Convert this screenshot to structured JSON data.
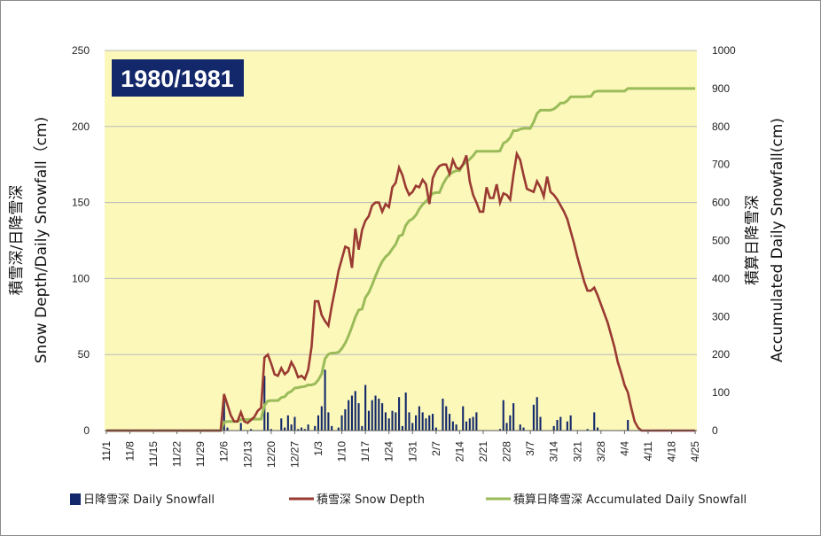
{
  "chart_data": {
    "type": "bar+line",
    "title": "1980/1981",
    "colors": {
      "plot_bg": "#fbf8ba",
      "bar": "#13286a",
      "depth": "#9a3a32",
      "accum": "#9bbb59",
      "badge": "#13286a"
    },
    "yleft": {
      "label_line1": "積雪深/日降雪深",
      "label_line2": "Snow Depth/Daily Snowfall（cm)",
      "ylim": [
        0,
        250
      ],
      "ticks": [
        "0",
        "50",
        "100",
        "150",
        "200",
        "250"
      ]
    },
    "yright": {
      "label_line1": "積算日降雪深",
      "label_line2": "Accumulated Daily Snowfall(cm)",
      "ylim": [
        0,
        1000
      ],
      "ticks": [
        "0",
        "100",
        "200",
        "300",
        "400",
        "500",
        "600",
        "700",
        "800",
        "900",
        "1000"
      ]
    },
    "xaxis": {
      "start": "11/1",
      "n_days": 176,
      "tick_labels": [
        "11/1",
        "11/8",
        "11/15",
        "11/22",
        "11/29",
        "12/6",
        "12/13",
        "12/20",
        "12/27",
        "1/3",
        "1/10",
        "1/17",
        "1/24",
        "1/31",
        "2/7",
        "2/14",
        "2/21",
        "2/28",
        "3/7",
        "3/14",
        "3/21",
        "3/28",
        "4/4",
        "4/11",
        "4/18",
        "4/25"
      ]
    },
    "legend": [
      {
        "label": "日降雪深 Daily Snowfall",
        "kind": "bar"
      },
      {
        "label": "積雪深 Snow Depth",
        "kind": "line-depth"
      },
      {
        "label": "積算日降雪深 Accumulated Daily Snowfall",
        "kind": "line-accum"
      }
    ],
    "series": [
      {
        "name": "日降雪深 Daily Snowfall",
        "axis": "left",
        "kind": "bar",
        "values": [
          0,
          0,
          0,
          0,
          0,
          0,
          0,
          0,
          0,
          0,
          0,
          0,
          0,
          0,
          0,
          0,
          0,
          0,
          0,
          0,
          0,
          0,
          0,
          0,
          0,
          0,
          0,
          0,
          0,
          0,
          0,
          0,
          0,
          0,
          0,
          22,
          2,
          0,
          0,
          0,
          5,
          0,
          0,
          1,
          0,
          0,
          0,
          36,
          12,
          1,
          0,
          0,
          8,
          2,
          10,
          4,
          9,
          1,
          2,
          1,
          4,
          0,
          3,
          10,
          16,
          40,
          12,
          3,
          0,
          2,
          10,
          14,
          20,
          23,
          26,
          18,
          3,
          30,
          13,
          20,
          23,
          21,
          18,
          12,
          8,
          13,
          12,
          22,
          3,
          25,
          12,
          5,
          10,
          16,
          12,
          8,
          10,
          11,
          2,
          0,
          21,
          16,
          11,
          6,
          4,
          0,
          16,
          6,
          8,
          9,
          12,
          0,
          0,
          0,
          0,
          0,
          0,
          1,
          20,
          5,
          10,
          18,
          0,
          4,
          2,
          0,
          0,
          17,
          22,
          9,
          0,
          0,
          0,
          3,
          7,
          9,
          0,
          6,
          10,
          0,
          0,
          0,
          0,
          1,
          0,
          12,
          2,
          0,
          0,
          0,
          0,
          0,
          0,
          0,
          0,
          7,
          0,
          0,
          0,
          0,
          0,
          0,
          0,
          0,
          0,
          0,
          0,
          0,
          0,
          0,
          0,
          0,
          0,
          0,
          0,
          0
        ]
      },
      {
        "name": "積雪深 Snow Depth",
        "axis": "left",
        "kind": "line",
        "values": [
          0,
          0,
          0,
          0,
          0,
          0,
          0,
          0,
          0,
          0,
          0,
          0,
          0,
          0,
          0,
          0,
          0,
          0,
          0,
          0,
          0,
          0,
          0,
          0,
          0,
          0,
          0,
          0,
          0,
          0,
          0,
          0,
          0,
          0,
          0,
          24,
          17,
          10,
          6,
          6,
          12,
          6,
          5,
          7,
          9,
          13,
          15,
          48,
          50,
          44,
          37,
          36,
          41,
          37,
          39,
          45,
          41,
          35,
          36,
          34,
          40,
          55,
          85,
          85,
          76,
          72,
          69,
          82,
          93,
          105,
          113,
          121,
          120,
          107,
          133,
          119,
          132,
          138,
          141,
          148,
          150,
          150,
          144,
          149,
          147,
          160,
          163,
          173,
          168,
          160,
          155,
          157,
          161,
          160,
          165,
          162,
          149,
          166,
          171,
          174,
          175,
          175,
          169,
          178,
          173,
          172,
          175,
          181,
          164,
          155,
          150,
          144,
          144,
          160,
          153,
          153,
          162,
          150,
          156,
          155,
          152,
          168,
          182,
          178,
          168,
          159,
          158,
          157,
          164,
          160,
          154,
          167,
          157,
          155,
          152,
          148,
          144,
          139,
          131,
          123,
          114,
          106,
          98,
          92,
          92,
          94,
          89,
          83,
          77,
          71,
          63,
          55,
          45,
          38,
          30,
          25,
          15,
          6,
          2,
          0,
          0,
          0,
          0,
          0,
          0,
          0,
          0,
          0,
          0,
          0,
          0,
          0,
          0,
          0,
          0,
          0
        ]
      },
      {
        "name": "積算日降雪深 Accumulated Daily Snowfall",
        "axis": "right",
        "kind": "line",
        "values": [
          0,
          0,
          0,
          0,
          0,
          0,
          0,
          0,
          0,
          0,
          0,
          0,
          0,
          0,
          0,
          0,
          0,
          0,
          0,
          0,
          0,
          0,
          0,
          0,
          0,
          0,
          0,
          0,
          0,
          0,
          0,
          0,
          0,
          0,
          0,
          22,
          24,
          24,
          24,
          24,
          29,
          29,
          29,
          30,
          30,
          30,
          30,
          66,
          78,
          79,
          79,
          79,
          87,
          89,
          99,
          103,
          112,
          113,
          115,
          116,
          120,
          120,
          123,
          133,
          149,
          189,
          201,
          204,
          204,
          206,
          216,
          230,
          250,
          273,
          299,
          317,
          320,
          350,
          363,
          383,
          406,
          427,
          445,
          457,
          465,
          478,
          490,
          512,
          515,
          540,
          552,
          557,
          567,
          583,
          595,
          603,
          613,
          624,
          626,
          626,
          647,
          663,
          674,
          680,
          684,
          684,
          700,
          706,
          714,
          723,
          735,
          735,
          735,
          735,
          735,
          735,
          735,
          736,
          756,
          761,
          771,
          789,
          789,
          793,
          795,
          795,
          795,
          812,
          834,
          843,
          843,
          843,
          843,
          846,
          853,
          862,
          862,
          868,
          878,
          878,
          878,
          878,
          878,
          879,
          879,
          891,
          893,
          893,
          893,
          893,
          893,
          893,
          893,
          893,
          893,
          900,
          900,
          900,
          900,
          900,
          900,
          900,
          900,
          900,
          900,
          900,
          900,
          900,
          900,
          900,
          900,
          900,
          900,
          900,
          900,
          900
        ]
      }
    ]
  }
}
